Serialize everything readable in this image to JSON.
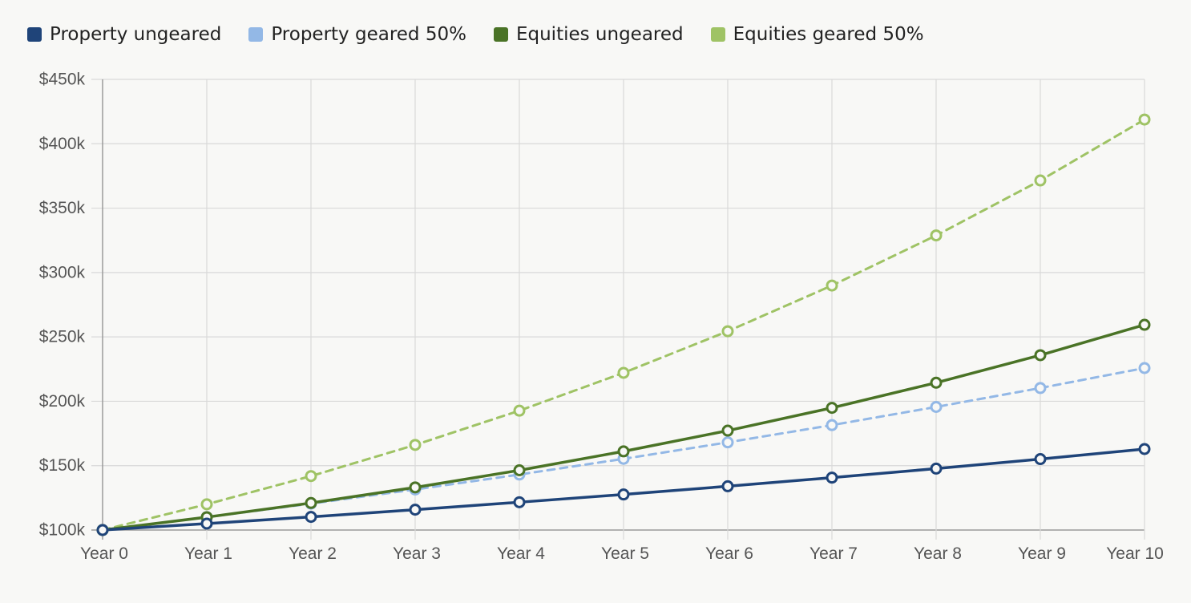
{
  "chart_data": {
    "type": "line",
    "title": "",
    "xlabel": "",
    "ylabel": "",
    "categories": [
      "Year 0",
      "Year 1",
      "Year 2",
      "Year 3",
      "Year 4",
      "Year 5",
      "Year 6",
      "Year 7",
      "Year 8",
      "Year 9",
      "Year 10"
    ],
    "y_ticks": [
      "$100k",
      "$150k",
      "$200k",
      "$250k",
      "$300k",
      "$350k",
      "$400k",
      "$450k"
    ],
    "ylim": [
      100,
      450
    ],
    "y_unit": "thousands of dollars",
    "grid": true,
    "legend_position": "top-left",
    "series": [
      {
        "name": "Property ungeared",
        "color": "#1f4479",
        "dashed": false,
        "values": [
          100,
          105,
          110.2,
          115.8,
          121.6,
          127.6,
          134.0,
          140.7,
          147.7,
          155.1,
          162.9
        ]
      },
      {
        "name": "Property geared 50%",
        "color": "#93b8e6",
        "dashed": true,
        "values": [
          100,
          110,
          120.5,
          131.5,
          143.1,
          155.3,
          168.1,
          181.5,
          195.6,
          210.3,
          225.8
        ]
      },
      {
        "name": "Equities ungeared",
        "color": "#4a7326",
        "dashed": false,
        "values": [
          100,
          110,
          121,
          133.1,
          146.4,
          161.1,
          177.2,
          194.9,
          214.4,
          235.8,
          259.4
        ]
      },
      {
        "name": "Equities geared 50%",
        "color": "#9fc365",
        "dashed": true,
        "values": [
          100,
          120,
          141.9,
          166.1,
          192.7,
          222.1,
          254.4,
          289.9,
          328.8,
          371.5,
          418.8
        ]
      }
    ]
  }
}
